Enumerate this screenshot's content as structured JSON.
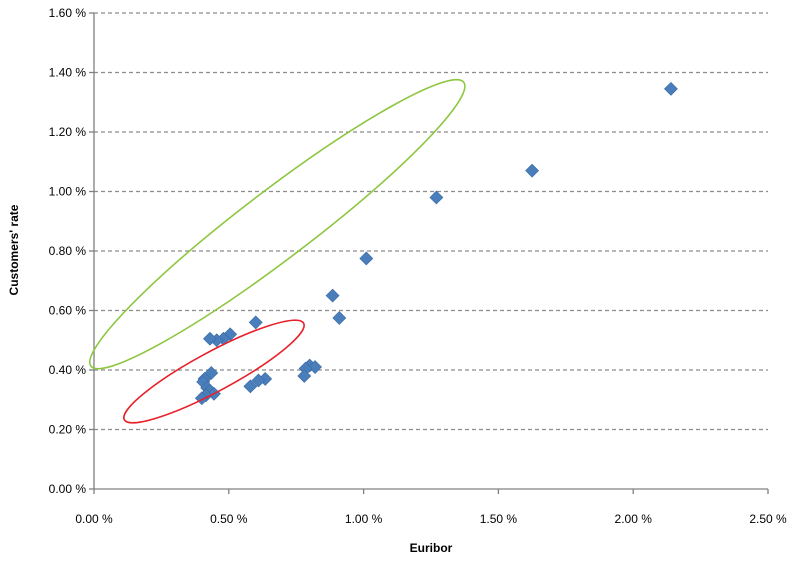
{
  "chart_data": {
    "type": "scatter",
    "title": "",
    "xlabel": "Euribor",
    "ylabel": "Customers' rate",
    "xlim": [
      0,
      2.5
    ],
    "ylim": [
      0,
      1.6
    ],
    "x_ticks": [
      0,
      0.5,
      1.0,
      1.5,
      2.0,
      2.5
    ],
    "x_tick_labels": [
      "0.00 %",
      "0.50 %",
      "1.00 %",
      "1.50 %",
      "2.00 %",
      "2.50 %"
    ],
    "y_ticks": [
      0,
      0.2,
      0.4,
      0.6,
      0.8,
      1.0,
      1.2,
      1.4,
      1.6
    ],
    "y_tick_labels": [
      "0.00 %",
      "0.20 %",
      "0.40 %",
      "0.60 %",
      "0.80 %",
      "1.00 %",
      "1.20 %",
      "1.40 %",
      "1.60 %"
    ],
    "grid": "horizontal dashed",
    "legend": "none",
    "marker": "diamond",
    "marker_color": "#4a7ebb",
    "series": [
      {
        "points": [
          [
            2.14,
            1.345
          ],
          [
            1.625,
            1.07
          ],
          [
            1.27,
            0.98
          ],
          [
            1.01,
            0.775
          ],
          [
            0.885,
            0.65
          ],
          [
            0.91,
            0.575
          ],
          [
            0.6,
            0.56
          ],
          [
            0.505,
            0.52
          ],
          [
            0.48,
            0.505
          ],
          [
            0.455,
            0.5
          ],
          [
            0.43,
            0.505
          ],
          [
            0.8,
            0.415
          ],
          [
            0.82,
            0.41
          ],
          [
            0.785,
            0.405
          ],
          [
            0.78,
            0.38
          ],
          [
            0.635,
            0.37
          ],
          [
            0.61,
            0.365
          ],
          [
            0.58,
            0.345
          ],
          [
            0.435,
            0.39
          ],
          [
            0.41,
            0.37
          ],
          [
            0.405,
            0.36
          ],
          [
            0.42,
            0.34
          ],
          [
            0.43,
            0.33
          ],
          [
            0.445,
            0.32
          ],
          [
            0.415,
            0.315
          ],
          [
            0.4,
            0.305
          ]
        ]
      }
    ],
    "annotations": [
      {
        "shape": "ellipse",
        "color": "#8dc63f",
        "center": [
          0.68,
          0.89
        ],
        "rx": 0.84,
        "ry": 0.115,
        "angle_deg": 34.6
      },
      {
        "shape": "ellipse",
        "color": "#e8202a",
        "center": [
          0.445,
          0.395
        ],
        "rx": 0.37,
        "ry": 0.066,
        "angle_deg": 26.0
      }
    ]
  }
}
